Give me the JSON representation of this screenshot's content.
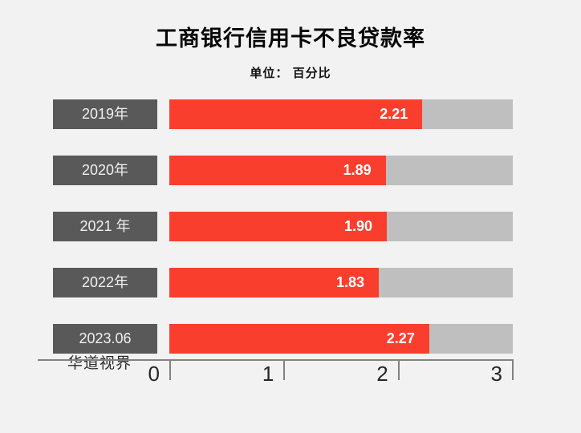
{
  "title": "工商银行信用卡不良贷款率",
  "subtitle": "单位： 百分比",
  "watermark": "华道视界",
  "colors": {
    "background": "#f2f2f2",
    "category_box": "#595959",
    "bar_fill": "#fa3e2d",
    "bar_track": "#bfbfbf",
    "value_text": "#ffffff",
    "axis": "#828282",
    "title_text": "#060606"
  },
  "chart_data": {
    "type": "bar",
    "orientation": "horizontal",
    "title": "工商银行信用卡不良贷款率",
    "unit_label": "单位： 百分比",
    "categories": [
      "2019年",
      "2020年",
      "2021 年",
      "2022年",
      "2023.06"
    ],
    "values": [
      2.21,
      1.89,
      1.9,
      1.83,
      2.27
    ],
    "value_labels": [
      "2.21",
      "1.89",
      "1.90",
      "1.83",
      "2.27"
    ],
    "xlabel": "",
    "ylabel": "",
    "xlim": [
      0,
      3
    ],
    "x_ticks": [
      0,
      1,
      2,
      3
    ],
    "x_tick_labels": [
      "0",
      "1",
      "2",
      "3"
    ],
    "grid": false,
    "legend": false,
    "value_label_position": "inside-end",
    "watermark": "华道视界"
  }
}
